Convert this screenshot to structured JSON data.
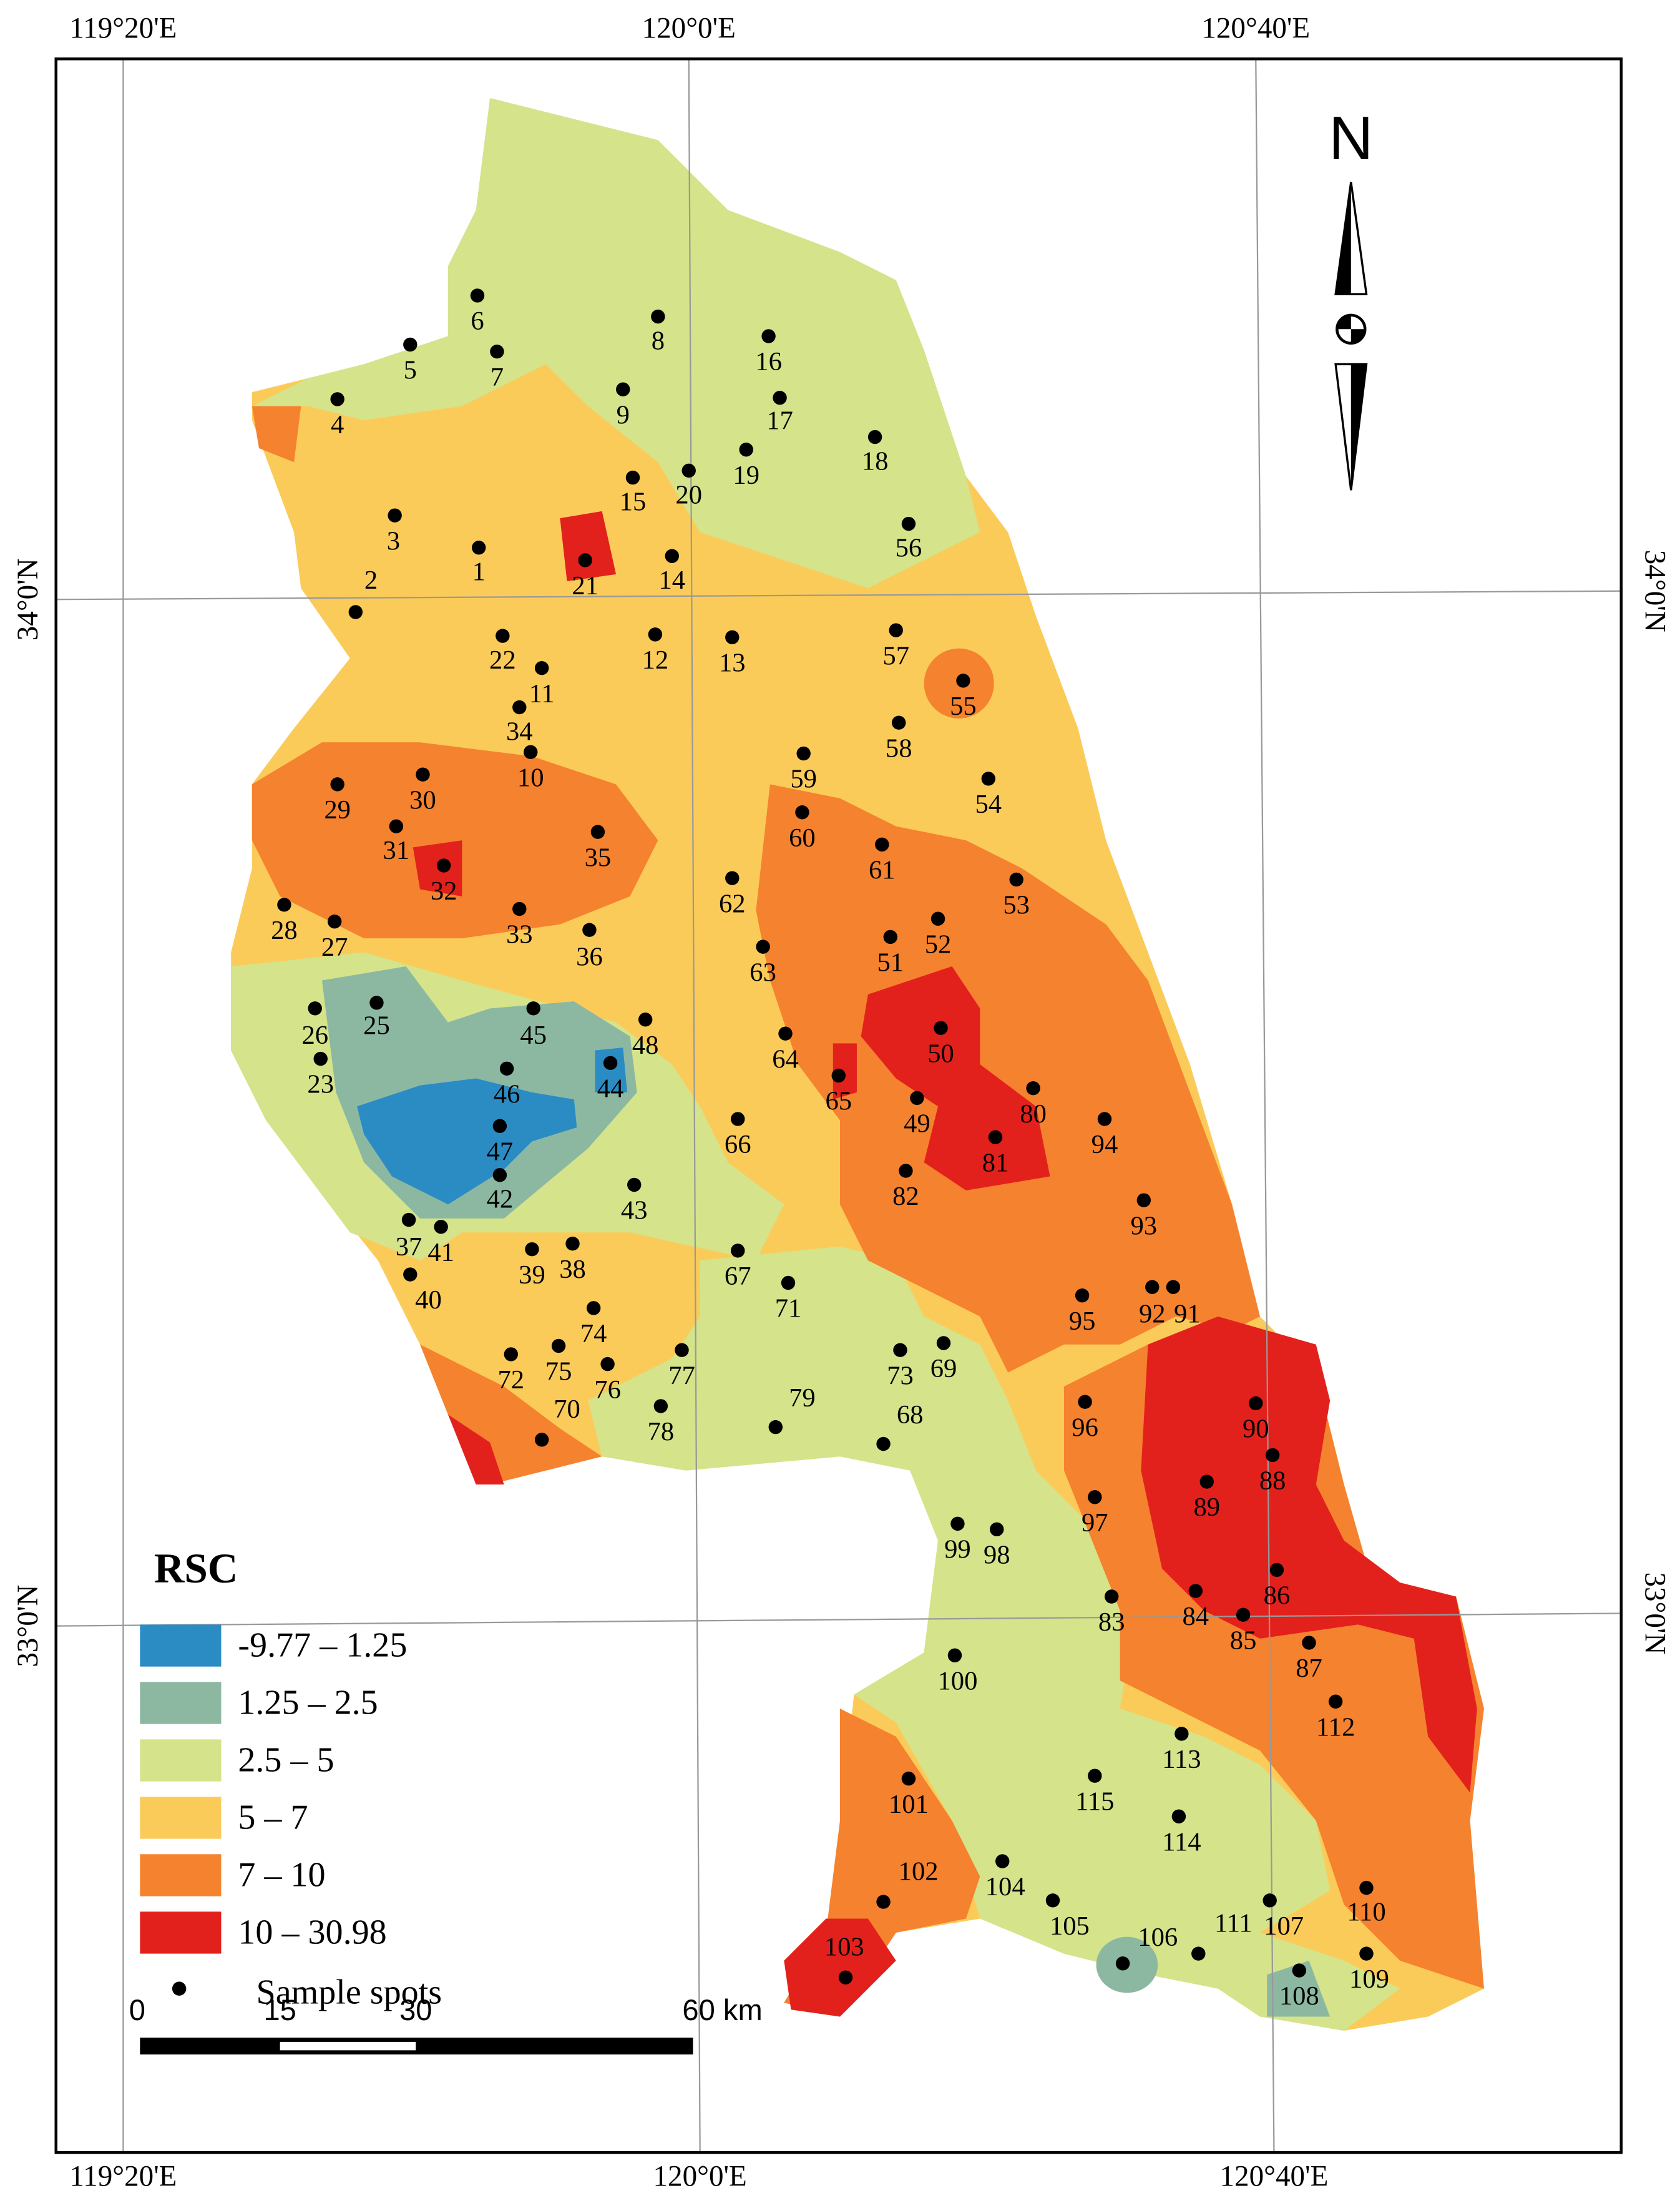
{
  "map": {
    "lon_labels": [
      "119°20'E",
      "120°0'E",
      "120°40'E"
    ],
    "lat_labels": [
      "34°0'N",
      "33°0'N"
    ],
    "north": "N",
    "legend": {
      "title": "RSC",
      "classes": [
        {
          "label": "-9.77 – 1.25",
          "color": "#2b8cc4"
        },
        {
          "label": "1.25 – 2.5",
          "color": "#8cb8a2"
        },
        {
          "label": "2.5 – 5",
          "color": "#d5e38a"
        },
        {
          "label": "5 – 7",
          "color": "#fbcb5a"
        },
        {
          "label": "7 – 10",
          "color": "#f5822f"
        },
        {
          "label": "10 – 30.98",
          "color": "#e3211c"
        }
      ],
      "spots_label": "Sample spots"
    },
    "scale": [
      "0",
      "15",
      "30",
      "60 km"
    ],
    "spots": [
      "1",
      "2",
      "3",
      "4",
      "5",
      "6",
      "7",
      "8",
      "9",
      "10",
      "11",
      "12",
      "13",
      "14",
      "15",
      "16",
      "17",
      "18",
      "19",
      "20",
      "21",
      "22",
      "23",
      "25",
      "26",
      "27",
      "28",
      "29",
      "30",
      "31",
      "32",
      "33",
      "34",
      "35",
      "36",
      "37",
      "38",
      "39",
      "40",
      "41",
      "42",
      "43",
      "44",
      "45",
      "46",
      "47",
      "48",
      "49",
      "50",
      "51",
      "52",
      "53",
      "54",
      "55",
      "56",
      "57",
      "58",
      "59",
      "60",
      "61",
      "62",
      "63",
      "64",
      "65",
      "66",
      "67",
      "68",
      "69",
      "70",
      "71",
      "72",
      "73",
      "74",
      "75",
      "76",
      "77",
      "78",
      "79",
      "80",
      "81",
      "82",
      "83",
      "84",
      "85",
      "86",
      "87",
      "88",
      "89",
      "90",
      "91",
      "92",
      "93",
      "94",
      "95",
      "96",
      "97",
      "98",
      "99",
      "100",
      "101",
      "102",
      "103",
      "104",
      "105",
      "106",
      "107",
      "108",
      "109",
      "110",
      "111",
      "112",
      "113",
      "114",
      "115"
    ]
  }
}
